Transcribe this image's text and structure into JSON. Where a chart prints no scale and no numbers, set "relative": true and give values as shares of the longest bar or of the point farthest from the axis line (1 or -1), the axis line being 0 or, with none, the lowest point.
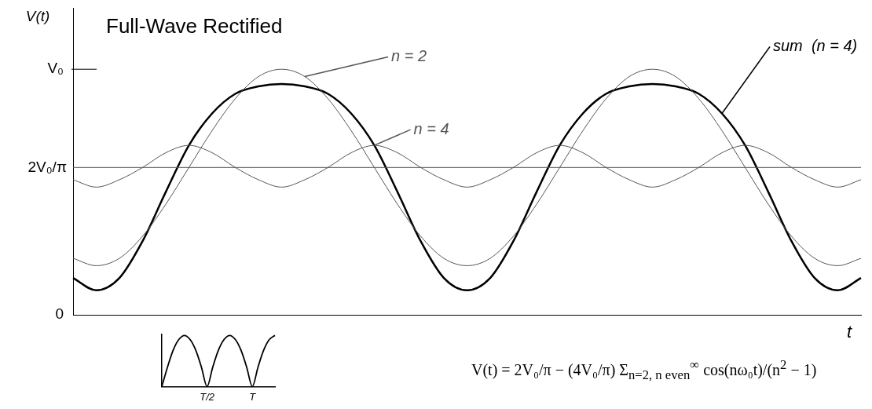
{
  "chart_data": [
    {
      "type": "line",
      "title": "Full-Wave Rectified",
      "xlabel": "t",
      "ylabel": "V(t)",
      "categories": [
        null,
        null,
        null,
        null,
        null,
        null,
        null,
        null,
        null,
        null,
        null,
        null,
        null,
        null,
        null,
        null,
        null,
        null,
        null,
        null,
        null,
        null,
        null,
        null,
        null,
        null,
        null,
        null,
        null,
        null,
        null,
        null,
        null,
        null,
        null
      ],
      "relative": true,
      "series": [
        {
          "name": "n = 2",
          "color": "#555555",
          "values": [
            0.23,
            0.2,
            0.23,
            0.32,
            0.45,
            0.6,
            0.75,
            0.88,
            0.97,
            1,
            0.97,
            0.88,
            0.75,
            0.6,
            0.45,
            0.32,
            0.23,
            0.2,
            0.23,
            0.32,
            0.45,
            0.6,
            0.75,
            0.88,
            0.97,
            1,
            0.97,
            0.88,
            0.75,
            0.6,
            0.45,
            0.32,
            0.23,
            0.2,
            0.23
          ]
        },
        {
          "name": "n = 4",
          "color": "#555555",
          "values": [
            0.55,
            0.52,
            0.55,
            0.6,
            0.66,
            0.69,
            0.66,
            0.6,
            0.55,
            0.52,
            0.55,
            0.6,
            0.66,
            0.69,
            0.66,
            0.6,
            0.55,
            0.52,
            0.55,
            0.6,
            0.66,
            0.69,
            0.66,
            0.6,
            0.55,
            0.52,
            0.55,
            0.6,
            0.66,
            0.69,
            0.66,
            0.6,
            0.55,
            0.52,
            0.55
          ]
        },
        {
          "name": "sum  (n = 4)",
          "color": "#000000",
          "values": [
            0.15,
            0.1,
            0.15,
            0.3,
            0.5,
            0.69,
            0.82,
            0.9,
            0.93,
            0.94,
            0.93,
            0.9,
            0.82,
            0.69,
            0.5,
            0.3,
            0.15,
            0.1,
            0.15,
            0.3,
            0.5,
            0.69,
            0.82,
            0.9,
            0.93,
            0.94,
            0.93,
            0.9,
            0.82,
            0.69,
            0.5,
            0.3,
            0.15,
            0.1,
            0.15
          ]
        }
      ],
      "ref_lines": [
        {
          "axis": "y",
          "value": 0.6,
          "label": "2V₀/π",
          "color": "#555555"
        }
      ],
      "annotations": [
        "V₀",
        "0",
        "V(t) = 2V₀/π − (4V₀/π) Σ$_{n=2, n even}$$^{∞}$ cos(nω₀t)/(n$^{2}$ − 1)"
      ]
    },
    {
      "type": "line",
      "relative": true,
      "categories": [
        null,
        null,
        null,
        null,
        null,
        null,
        null,
        null,
        "T/2",
        null,
        null,
        null,
        null,
        null,
        null,
        null,
        "T",
        null,
        null,
        null,
        null
      ],
      "tick_labels": "x",
      "series": [
        {
          "color": "#000000",
          "values": [
            0,
            0.38,
            0.71,
            0.92,
            1,
            0.92,
            0.71,
            0.38,
            0,
            0.38,
            0.71,
            0.92,
            1,
            0.92,
            0.71,
            0.38,
            0,
            0.38,
            0.71,
            0.92,
            1
          ]
        }
      ]
    }
  ]
}
